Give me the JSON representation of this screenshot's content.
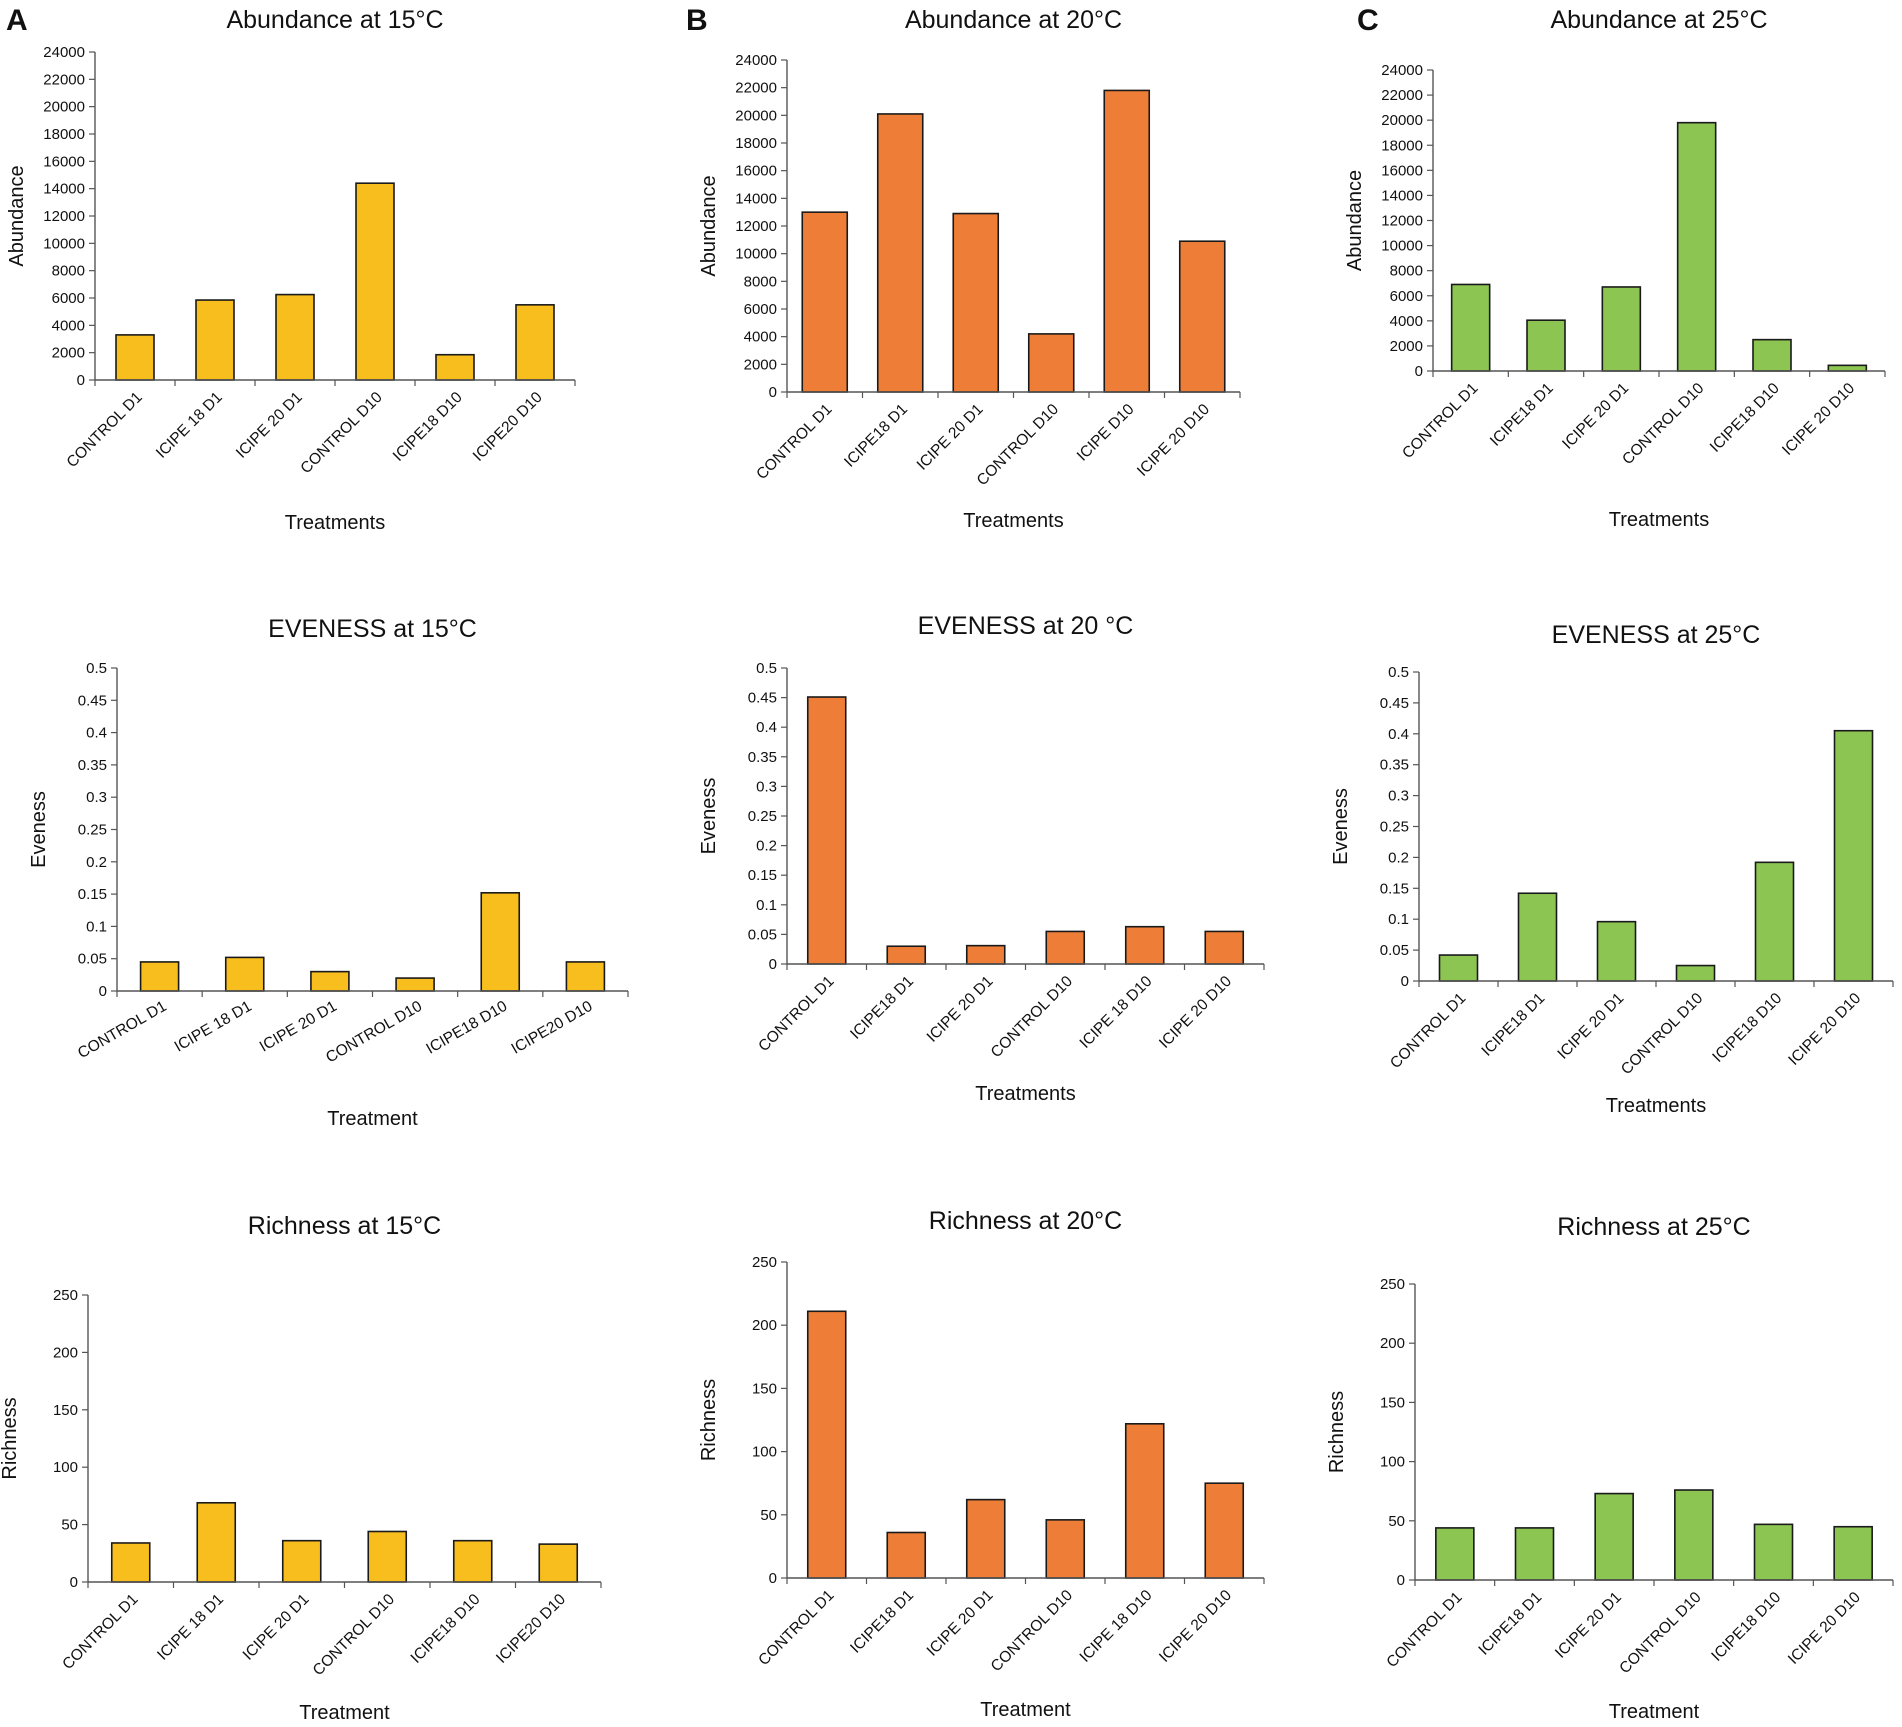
{
  "figure": {
    "panel_letters": [
      "A",
      "B",
      "C"
    ],
    "colors": {
      "col_15": "#F8BE1E",
      "col_20": "#EE7E37",
      "col_25": "#8CC552"
    }
  },
  "chart_data": [
    {
      "type": "bar",
      "title": "Abundance at 15°C",
      "xlabel": "Treatments",
      "ylabel": "Abundance",
      "categories": [
        "CONTROL D1",
        "ICIPE 18 D1",
        "ICIPE 20 D1",
        "CONTROL D10",
        "ICIPE18 D10",
        "ICIPE20 D10"
      ],
      "values": [
        3300,
        5850,
        6250,
        14400,
        1850,
        5500
      ],
      "ylim": [
        0,
        24000
      ],
      "yticks": [
        "0",
        "2000",
        "4000",
        "6000",
        "8000",
        "10000",
        "12000",
        "14000",
        "16000",
        "18000",
        "20000",
        "22000",
        "24000"
      ],
      "color": "#F8BE1E"
    },
    {
      "type": "bar",
      "title": "Abundance at 20°C",
      "xlabel": "Treatments",
      "ylabel": "Abundance",
      "categories": [
        "CONTROL D1",
        "ICIPE18 D1",
        "ICIPE 20 D1",
        "CONTROL D10",
        "ICIPE D10",
        "ICIPE 20 D10"
      ],
      "values": [
        13000,
        20100,
        12900,
        4200,
        21800,
        10900
      ],
      "ylim": [
        0,
        24000
      ],
      "yticks": [
        "0",
        "2000",
        "4000",
        "6000",
        "8000",
        "10000",
        "12000",
        "14000",
        "16000",
        "18000",
        "20000",
        "22000",
        "24000"
      ],
      "color": "#EE7E37"
    },
    {
      "type": "bar",
      "title": "Abundance at 25°C",
      "xlabel": "Treatments",
      "ylabel": "Abundance",
      "categories": [
        "CONTROL D1",
        "ICIPE18 D1",
        "ICIPE 20 D1",
        "CONTROL D10",
        "ICIPE18 D10",
        "ICIPE 20 D10"
      ],
      "values": [
        6900,
        4050,
        6700,
        19800,
        2500,
        450
      ],
      "ylim": [
        0,
        24000
      ],
      "yticks": [
        "0",
        "2000",
        "4000",
        "6000",
        "8000",
        "10000",
        "12000",
        "14000",
        "16000",
        "18000",
        "20000",
        "22000",
        "24000"
      ],
      "color": "#8CC552"
    },
    {
      "type": "bar",
      "title": "EVENESS at 15°C",
      "xlabel": "Treatment",
      "ylabel": "Eveness",
      "categories": [
        "CONTROL D1",
        "ICIPE 18 D1",
        "ICIPE 20 D1",
        "CONTROL D10",
        "ICIPE18 D10",
        "ICIPE20 D10"
      ],
      "values": [
        0.045,
        0.052,
        0.03,
        0.02,
        0.152,
        0.045
      ],
      "ylim": [
        0,
        0.5
      ],
      "yticks": [
        "0",
        "0.05",
        "0.1",
        "0.15",
        "0.2",
        "0.25",
        "0.3",
        "0.35",
        "0.4",
        "0.45",
        "0.5"
      ],
      "color": "#F8BE1E"
    },
    {
      "type": "bar",
      "title": "EVENESS at 20 °C",
      "xlabel": "Treatments",
      "ylabel": "Eveness",
      "categories": [
        "CONTROL D1",
        "ICIPE18 D1",
        "ICIPE 20 D1",
        "CONTROL D10",
        "ICIPE 18 D10",
        "ICIPE 20 D10"
      ],
      "values": [
        0.451,
        0.03,
        0.031,
        0.055,
        0.063,
        0.055
      ],
      "ylim": [
        0,
        0.5
      ],
      "yticks": [
        "0",
        "0.05",
        "0.1",
        "0.15",
        "0.2",
        "0.25",
        "0.3",
        "0.35",
        "0.4",
        "0.45",
        "0.5"
      ],
      "color": "#EE7E37"
    },
    {
      "type": "bar",
      "title": "EVENESS at 25°C",
      "xlabel": "Treatments",
      "ylabel": "Eveness",
      "categories": [
        "CONTROL D1",
        "ICIPE18 D1",
        "ICIPE 20 D1",
        "CONTROL D10",
        "ICIPE18 D10",
        "ICIPE 20 D10"
      ],
      "values": [
        0.042,
        0.142,
        0.096,
        0.025,
        0.192,
        0.405
      ],
      "ylim": [
        0,
        0.5
      ],
      "yticks": [
        "0",
        "0.05",
        "0.1",
        "0.15",
        "0.2",
        "0.25",
        "0.3",
        "0.35",
        "0.4",
        "0.45",
        "0.5"
      ],
      "color": "#8CC552"
    },
    {
      "type": "bar",
      "title": "Richness at 15°C",
      "xlabel": "Treatment",
      "ylabel": "Richness",
      "categories": [
        "CONTROL D1",
        "ICIPE 18 D1",
        "ICIPE 20 D1",
        "CONTROL D10",
        "ICIPE18 D10",
        "ICIPE20 D10"
      ],
      "values": [
        34,
        69,
        36,
        44,
        36,
        33
      ],
      "ylim": [
        0,
        250
      ],
      "yticks": [
        "0",
        "50",
        "100",
        "150",
        "200",
        "250"
      ],
      "color": "#F8BE1E"
    },
    {
      "type": "bar",
      "title": "Richness at 20°C",
      "xlabel": "Treatment",
      "ylabel": "Richness",
      "categories": [
        "CONTROL D1",
        "ICIPE18 D1",
        "ICIPE 20 D1",
        "CONTROL D10",
        "ICIPE 18 D10",
        "ICIPE 20 D10"
      ],
      "values": [
        211,
        36,
        62,
        46,
        122,
        75
      ],
      "ylim": [
        0,
        250
      ],
      "yticks": [
        "0",
        "50",
        "100",
        "150",
        "200",
        "250"
      ],
      "color": "#EE7E37"
    },
    {
      "type": "bar",
      "title": "Richness at 25°C",
      "xlabel": "Treatment",
      "ylabel": "Richness",
      "categories": [
        "CONTROL D1",
        "ICIPE18 D1",
        "ICIPE 20 D1",
        "CONTROL D10",
        "ICIPE18 D10",
        "ICIPE 20 D10"
      ],
      "values": [
        44,
        44,
        73,
        76,
        47,
        45
      ],
      "ylim": [
        0,
        250
      ],
      "yticks": [
        "0",
        "50",
        "100",
        "150",
        "200",
        "250"
      ],
      "color": "#8CC552"
    }
  ]
}
